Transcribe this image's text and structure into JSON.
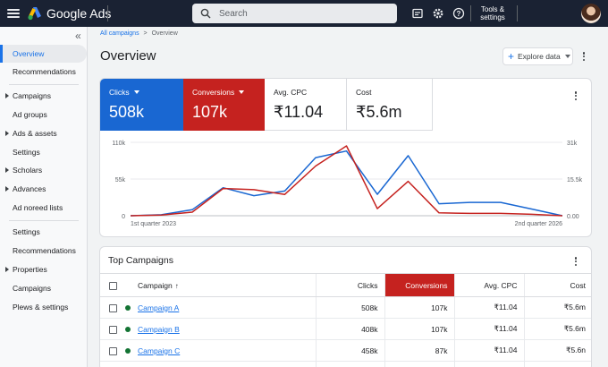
{
  "header": {
    "brand": "Google Ads",
    "search_placeholder": "Search",
    "tools_label": "Tools & settings",
    "icons": [
      "menu-icon",
      "google-ads-logo",
      "search-icon",
      "reports-icon",
      "settings-icon",
      "help-icon"
    ]
  },
  "sidebar": {
    "items": [
      {
        "label": "Overview",
        "expandable": false,
        "active": true
      },
      {
        "label": "Recommendations",
        "expandable": false
      },
      {
        "label": "Campaigns",
        "expandable": true
      },
      {
        "label": "Ad groups",
        "expandable": false
      },
      {
        "label": "Ads & assets",
        "expandable": true
      },
      {
        "label": "Settings",
        "expandable": false
      },
      {
        "label": "Scholars",
        "expandable": true
      },
      {
        "label": "Advances",
        "expandable": true
      },
      {
        "label": "Ad noreed lists",
        "expandable": false
      },
      {
        "label": "Settings",
        "expandable": false
      },
      {
        "label": "Recommendations",
        "expandable": false
      },
      {
        "label": "Properties",
        "expandable": true
      },
      {
        "label": "Campaigns",
        "expandable": false
      },
      {
        "label": "Plews & settings",
        "expandable": false
      }
    ]
  },
  "breadcrumb": {
    "root": "All campaigns",
    "separator": ">",
    "current": "Overview"
  },
  "page": {
    "title": "Overview",
    "explore_label": "Explore data"
  },
  "metrics": [
    {
      "label": "Clicks",
      "value": "508k",
      "color": "#1967d2",
      "dropdown": true
    },
    {
      "label": "Conversions",
      "value": "107k",
      "color": "#c5221f",
      "dropdown": true
    },
    {
      "label": "Avg. CPC",
      "value": "₹11.04"
    },
    {
      "label": "Cost",
      "value": "₹5.6m"
    }
  ],
  "chart_data": {
    "type": "line",
    "x": [
      "1st quarter 2023",
      "",
      "",
      "",
      "",
      "",
      "",
      "",
      "",
      "",
      "",
      "",
      "",
      "",
      "2nd quarter 2026"
    ],
    "series": [
      {
        "color": "#1967d2",
        "axis": "left",
        "values": [
          0,
          1500,
          9000,
          42000,
          30000,
          37000,
          87000,
          97000,
          32000,
          90000,
          18000,
          20000,
          20000,
          10000,
          0
        ]
      },
      {
        "color": "#c5221f",
        "axis": "right",
        "values": [
          0,
          300,
          1500,
          11500,
          11000,
          9000,
          21000,
          29500,
          3000,
          14500,
          1200,
          1000,
          1000,
          600,
          0
        ]
      }
    ],
    "y_left": {
      "ticks": [
        "110k",
        "55k",
        "0"
      ],
      "range": [
        0,
        110000
      ]
    },
    "y_right": {
      "ticks": [
        "31k",
        "15.5k",
        "0.00"
      ],
      "range": [
        0,
        31000
      ]
    },
    "grid": true,
    "legend": "none"
  },
  "table": {
    "title": "Top Campaigns",
    "columns": [
      "Campaign",
      "Clicks",
      "Conversions",
      "Avg. CPC",
      "Cost"
    ],
    "rows": [
      {
        "name": "Campaign A",
        "clicks": "508k",
        "conversions": "107k",
        "avg_cpc": "₹11.04",
        "cost": "₹5.6m"
      },
      {
        "name": "Campaign B",
        "clicks": "408k",
        "conversions": "107k",
        "avg_cpc": "₹11.04",
        "cost": "₹5.6m"
      },
      {
        "name": "Campaign C",
        "clicks": "458k",
        "conversions": "87k",
        "avg_cpc": "₹11.04",
        "cost": "₹5.6n"
      }
    ],
    "sort_column": "Campaign",
    "highlight_column": "Conversions",
    "status_color": "#137333"
  }
}
